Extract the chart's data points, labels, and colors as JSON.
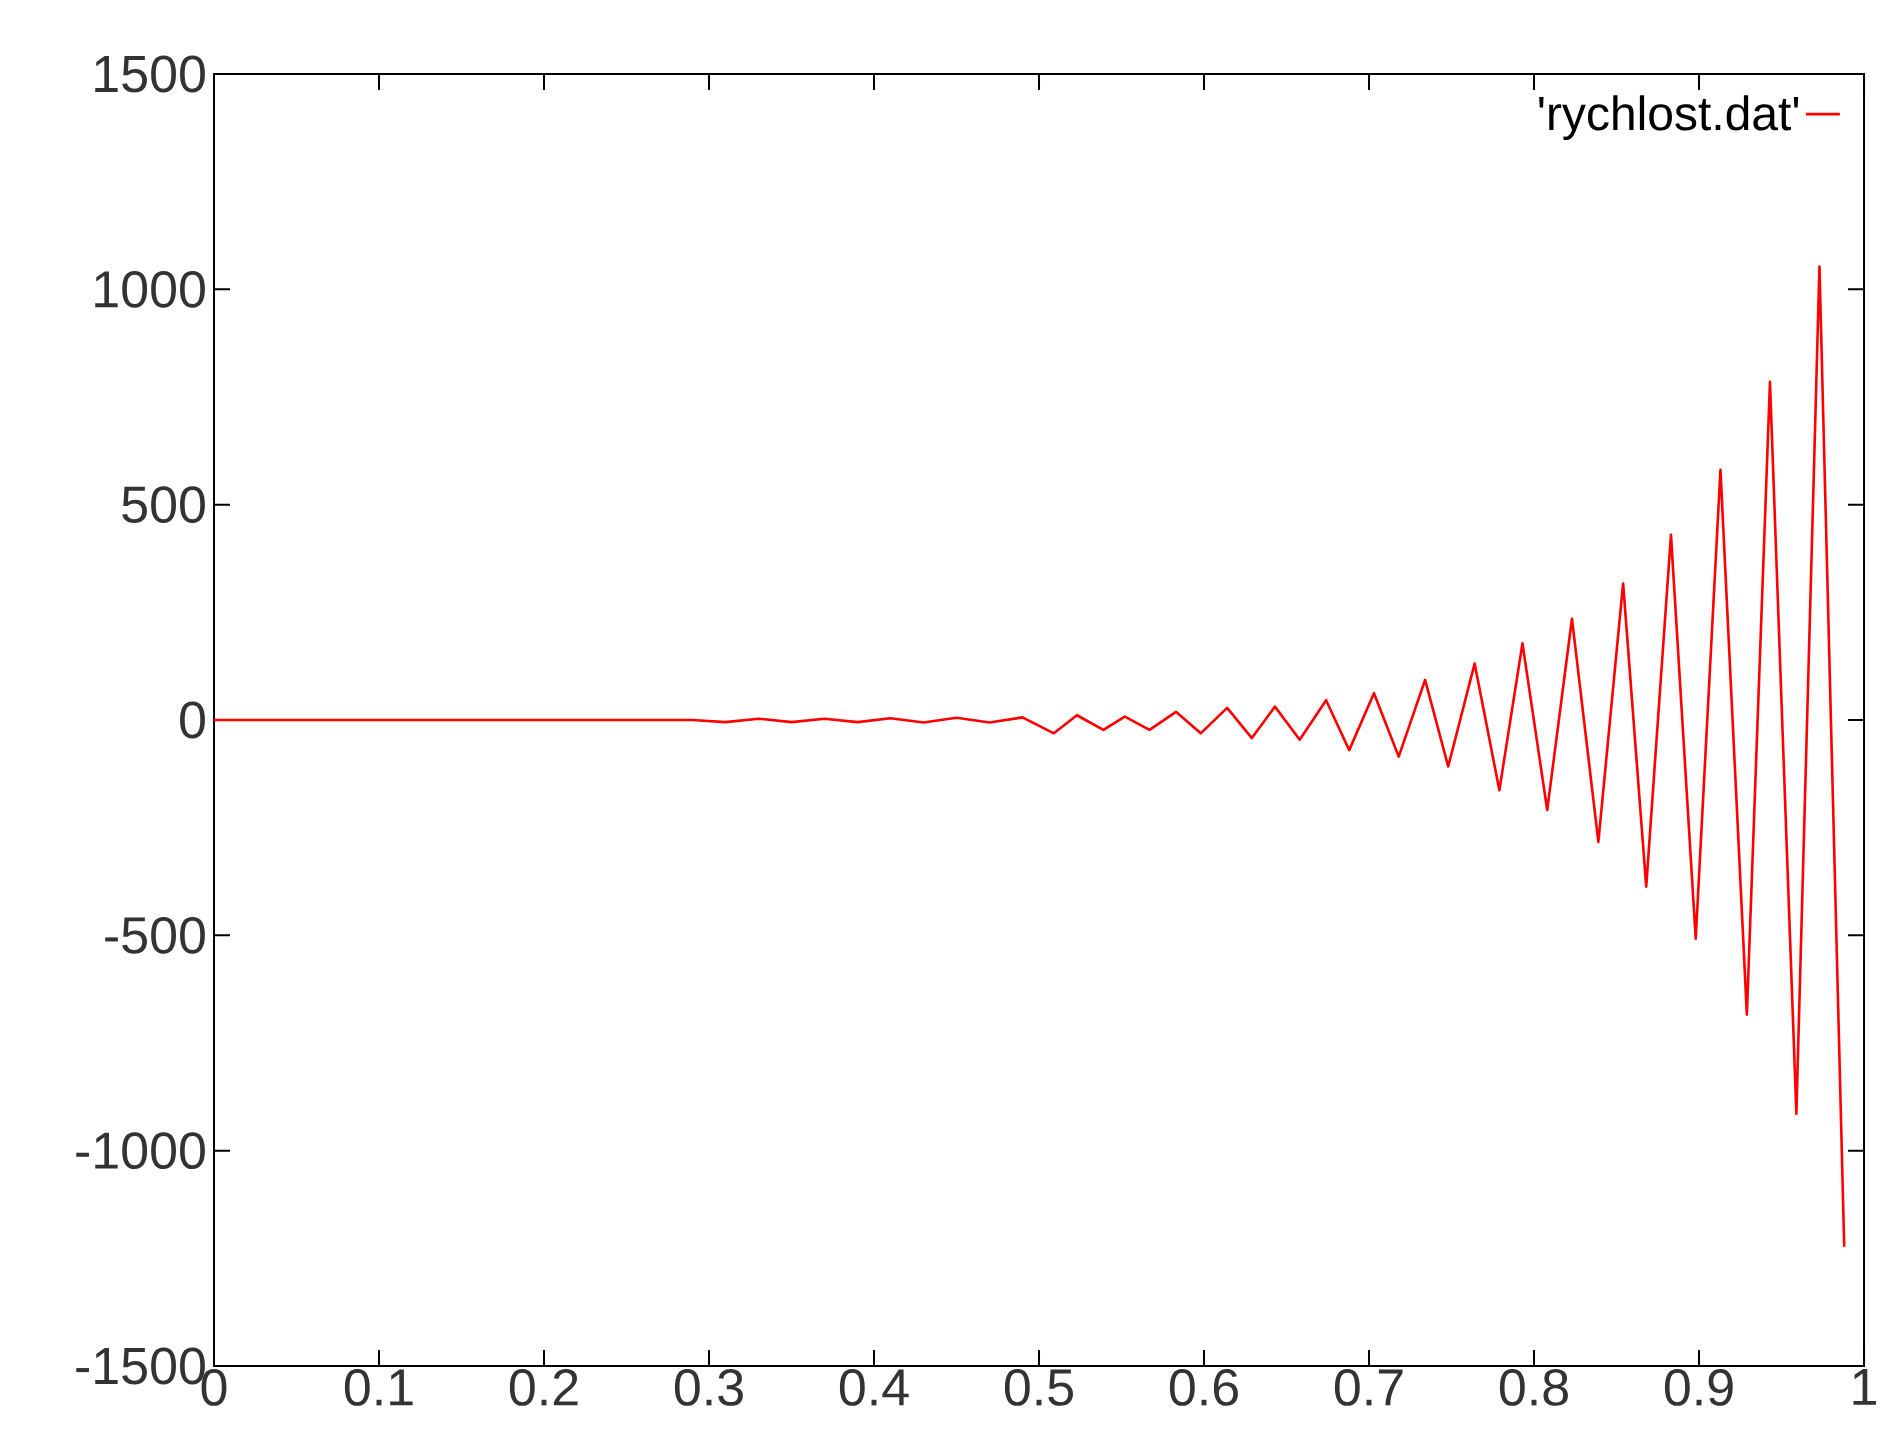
{
  "chart_data": {
    "type": "line",
    "x": [
      0,
      0.29,
      0.31,
      0.33,
      0.35,
      0.37,
      0.39,
      0.41,
      0.43,
      0.45,
      0.47,
      0.49,
      0.509,
      0.523,
      0.539,
      0.552,
      0.567,
      0.583,
      0.598,
      0.614,
      0.629,
      0.643,
      0.658,
      0.674,
      0.688,
      0.703,
      0.718,
      0.734,
      0.748,
      0.764,
      0.779,
      0.793,
      0.808,
      0.823,
      0.839,
      0.854,
      0.868,
      0.883,
      0.898,
      0.913,
      0.929,
      0.943,
      0.959,
      0.973,
      0.988
    ],
    "series": [
      {
        "name": "'rychlost.dat'",
        "color": "#ff0000",
        "values": [
          0,
          0,
          -5,
          3,
          -5,
          3,
          -5,
          4,
          -6,
          5,
          -6,
          6,
          -31,
          11,
          -23,
          8,
          -23,
          19,
          -31,
          28,
          -42,
          31,
          -46,
          46,
          -70,
          62,
          -85,
          93,
          -108,
          131,
          -163,
          178,
          -209,
          235,
          -283,
          317,
          -387,
          430,
          -508,
          581,
          -684,
          785,
          -914,
          1053,
          -1223
        ]
      }
    ],
    "xlim": [
      0,
      1
    ],
    "xticks": [
      0,
      0.1,
      0.2,
      0.3,
      0.4,
      0.5,
      0.6,
      0.7,
      0.8,
      0.9,
      1
    ],
    "ylim": [
      -1500,
      1500
    ],
    "yticks": [
      -1500,
      -1000,
      -500,
      0,
      500,
      1000,
      1500
    ],
    "legend": "top right",
    "marker": "none",
    "line_style": "solid",
    "grid": false
  }
}
